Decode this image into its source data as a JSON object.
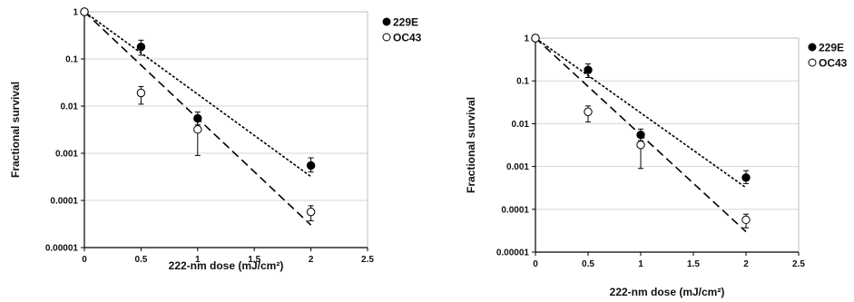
{
  "chart_data": [
    {
      "type": "scatter",
      "title": "",
      "xlabel": "222-nm dose (mJ/cm²)",
      "ylabel": "Fractional survival",
      "xlim": [
        0,
        2.5
      ],
      "ylim": [
        1e-05,
        1
      ],
      "yscale": "log",
      "x_ticks": [
        0,
        0.5,
        1,
        1.5,
        2,
        2.5
      ],
      "x_tick_labels": [
        "0",
        "0.5",
        "1",
        "1.5",
        "2",
        "2.5"
      ],
      "y_ticks": [
        1,
        0.1,
        0.01,
        0.001,
        0.0001,
        1e-05
      ],
      "y_tick_labels": [
        "1",
        "0.1",
        "0.01",
        "0.001",
        "0.0001",
        "0.00001"
      ],
      "grid": "horizontal",
      "legend_position": "top-right",
      "series": [
        {
          "name": "229E",
          "marker": "filled-circle",
          "color": "#000000",
          "points": [
            {
              "x": 0,
              "y": 1,
              "err_low": 0,
              "err_high": 0
            },
            {
              "x": 0.5,
              "y": 0.18,
              "err_low": 0.06,
              "err_high": 0.07
            },
            {
              "x": 1,
              "y": 0.0055,
              "err_low": 0.0015,
              "err_high": 0.002
            },
            {
              "x": 2,
              "y": 0.00055,
              "err_low": 0.00015,
              "err_high": 0.00025
            }
          ],
          "fit": {
            "style": "dotted",
            "x": [
              0,
              2
            ],
            "y": [
              1,
              0.00032
            ]
          }
        },
        {
          "name": "OC43",
          "marker": "open-circle",
          "color": "#000000",
          "points": [
            {
              "x": 0,
              "y": 1,
              "err_low": 0,
              "err_high": 0
            },
            {
              "x": 0.5,
              "y": 0.019,
              "err_low": 0.008,
              "err_high": 0.007
            },
            {
              "x": 1,
              "y": 0.0032,
              "err_low": 0.0023,
              "err_high": 0.0025
            },
            {
              "x": 2,
              "y": 5.7e-05,
              "err_low": 2e-05,
              "err_high": 2e-05
            }
          ],
          "fit": {
            "style": "dashed",
            "x": [
              0,
              2
            ],
            "y": [
              1,
              3e-05
            ]
          }
        }
      ]
    },
    {
      "type": "scatter",
      "title": "",
      "xlabel": "222-nm dose (mJ/cm²)",
      "ylabel": "Fractional survival",
      "xlim": [
        0,
        2.5
      ],
      "ylim": [
        1e-05,
        1
      ],
      "yscale": "log",
      "x_ticks": [
        0,
        0.5,
        1,
        1.5,
        2,
        2.5
      ],
      "x_tick_labels": [
        "0",
        "0.5",
        "1",
        "1.5",
        "2",
        "2.5"
      ],
      "y_ticks": [
        1,
        0.1,
        0.01,
        0.001,
        0.0001,
        1e-05
      ],
      "y_tick_labels": [
        "1",
        "0.1",
        "0.01",
        "0.001",
        "0.0001",
        "0.00001"
      ],
      "grid": "horizontal",
      "legend_position": "top-right",
      "series": [
        {
          "name": "229E",
          "marker": "filled-circle",
          "color": "#000000",
          "points": [
            {
              "x": 0,
              "y": 1,
              "err_low": 0,
              "err_high": 0
            },
            {
              "x": 0.5,
              "y": 0.18,
              "err_low": 0.06,
              "err_high": 0.07
            },
            {
              "x": 1,
              "y": 0.0055,
              "err_low": 0.0015,
              "err_high": 0.002
            },
            {
              "x": 2,
              "y": 0.00055,
              "err_low": 0.00015,
              "err_high": 0.00025
            }
          ],
          "fit": {
            "style": "dotted",
            "x": [
              0,
              2
            ],
            "y": [
              1,
              0.00032
            ]
          }
        },
        {
          "name": "OC43",
          "marker": "open-circle",
          "color": "#000000",
          "points": [
            {
              "x": 0,
              "y": 1,
              "err_low": 0,
              "err_high": 0
            },
            {
              "x": 0.5,
              "y": 0.019,
              "err_low": 0.008,
              "err_high": 0.007
            },
            {
              "x": 1,
              "y": 0.0032,
              "err_low": 0.0023,
              "err_high": 0.0025
            },
            {
              "x": 2,
              "y": 5.7e-05,
              "err_low": 2e-05,
              "err_high": 2e-05
            }
          ],
          "fit": {
            "style": "dashed",
            "x": [
              0,
              2
            ],
            "y": [
              1,
              3e-05
            ]
          }
        }
      ]
    }
  ]
}
